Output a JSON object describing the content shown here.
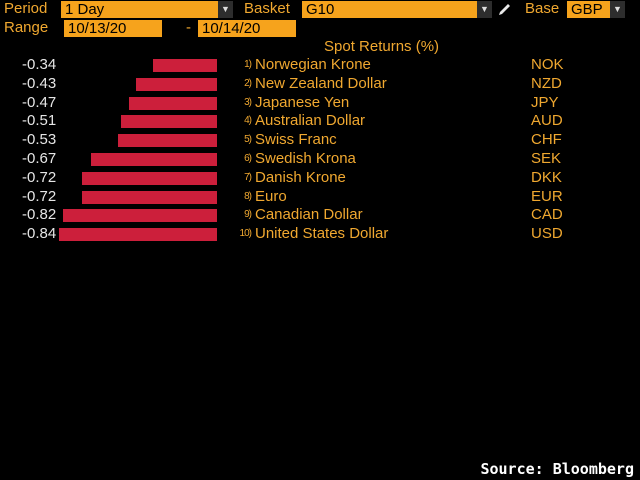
{
  "toolbar": {
    "period_label": "Period",
    "period_value": "1 Day",
    "basket_label": "Basket",
    "basket_value": "G10",
    "base_label": "Base",
    "base_value": "GBP",
    "range_label": "Range",
    "range_start": "10/13/20",
    "range_sep": "-",
    "range_end": "10/14/20"
  },
  "chart": {
    "header": "Spot Returns (%)"
  },
  "chart_data": {
    "type": "bar",
    "title": "Spot Returns (%)",
    "orientation": "horizontal",
    "categories": [
      "Norwegian Krone",
      "New Zealand Dollar",
      "Japanese Yen",
      "Australian Dollar",
      "Swiss Franc",
      "Swedish Krona",
      "Danish Krone",
      "Euro",
      "Canadian Dollar",
      "United States Dollar"
    ],
    "codes": [
      "NOK",
      "NZD",
      "JPY",
      "AUD",
      "CHF",
      "SEK",
      "DKK",
      "EUR",
      "CAD",
      "USD"
    ],
    "ranks": [
      "1)",
      "2)",
      "3)",
      "4)",
      "5)",
      "6)",
      "7)",
      "8)",
      "9)",
      "10)"
    ],
    "values": [
      -0.34,
      -0.43,
      -0.47,
      -0.51,
      -0.53,
      -0.67,
      -0.72,
      -0.72,
      -0.82,
      -0.84
    ],
    "value_labels": [
      "-0.34",
      "-0.43",
      "-0.47",
      "-0.51",
      "-0.53",
      "-0.67",
      "-0.72",
      "-0.72",
      "-0.82",
      "-0.84"
    ],
    "bar_color": "#cc1f3b"
  },
  "footer": {
    "source": "Source: Bloomberg"
  },
  "colors": {
    "background": "#000000",
    "label": "#f0a830",
    "field_bg": "#f6a31c",
    "bar": "#cc1f3b"
  }
}
